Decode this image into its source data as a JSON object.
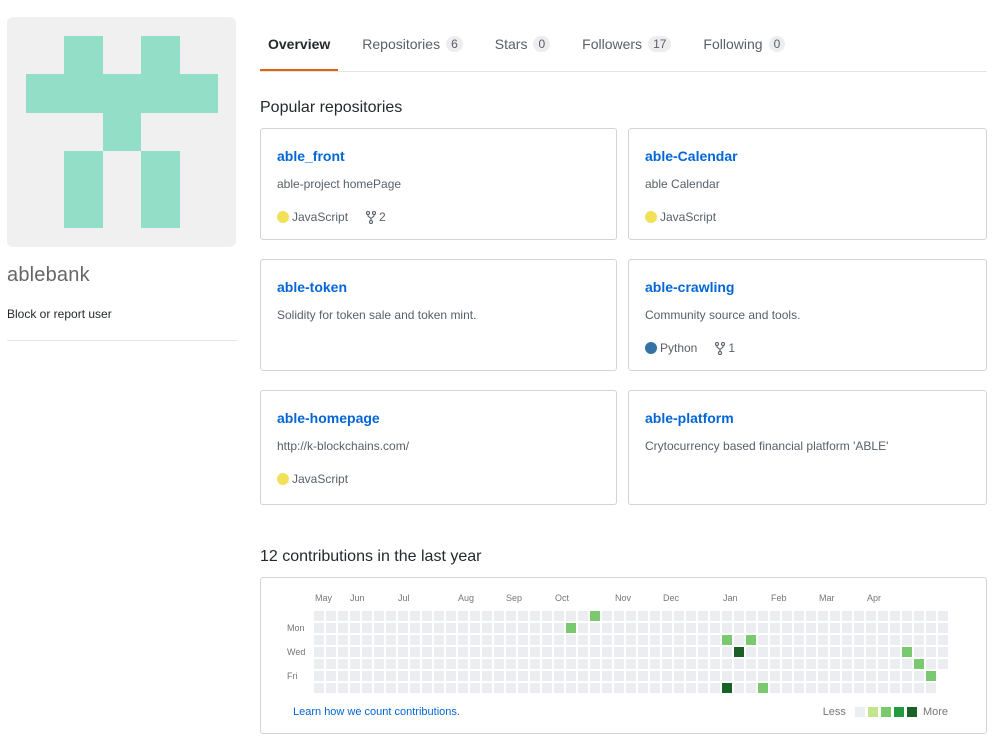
{
  "profile": {
    "username": "ablebank",
    "block_link": "Block or report user"
  },
  "tabs": [
    {
      "label": "Overview",
      "count": null,
      "selected": true
    },
    {
      "label": "Repositories",
      "count": "6",
      "selected": false
    },
    {
      "label": "Stars",
      "count": "0",
      "selected": false
    },
    {
      "label": "Followers",
      "count": "17",
      "selected": false
    },
    {
      "label": "Following",
      "count": "0",
      "selected": false
    }
  ],
  "popular": {
    "title": "Popular repositories",
    "repos": [
      {
        "name": "able_front",
        "description": "able-project homePage",
        "language": "JavaScript",
        "lang_color": "#f1e05a",
        "forks": "2"
      },
      {
        "name": "able-Calendar",
        "description": "able Calendar",
        "language": "JavaScript",
        "lang_color": "#f1e05a",
        "forks": ""
      },
      {
        "name": "able-token",
        "description": "Solidity for token sale and token mint.",
        "language": "",
        "lang_color": "",
        "forks": ""
      },
      {
        "name": "able-crawling",
        "description": "Community source and tools.",
        "language": "Python",
        "lang_color": "#3572A5",
        "forks": "1"
      },
      {
        "name": "able-homepage",
        "description": "http://k-blockchains.com/",
        "language": "JavaScript",
        "lang_color": "#f1e05a",
        "forks": ""
      },
      {
        "name": "able-platform",
        "description": "Crytocurrency based financial platform 'ABLE'",
        "language": "",
        "lang_color": "",
        "forks": ""
      }
    ]
  },
  "contributions": {
    "title": "12 contributions in the last year",
    "months": [
      "May",
      "Jun",
      "Jul",
      "Aug",
      "Sep",
      "Oct",
      "Nov",
      "Dec",
      "Jan",
      "Feb",
      "Mar",
      "Apr"
    ],
    "day_labels": [
      "Mon",
      "Wed",
      "Fri"
    ],
    "learn_link": "Learn how we count contributions.",
    "legend_less": "Less",
    "legend_more": "More",
    "colors": [
      "#ebedf0",
      "#c6e48b",
      "#7bc96f",
      "#239a3b",
      "#196127"
    ],
    "weeks": 53,
    "last_week_days": 5,
    "active_cells": [
      {
        "week": 21,
        "day": 1,
        "level": 2
      },
      {
        "week": 23,
        "day": 0,
        "level": 2
      },
      {
        "week": 34,
        "day": 2,
        "level": 2
      },
      {
        "week": 34,
        "day": 6,
        "level": 4
      },
      {
        "week": 35,
        "day": 3,
        "level": 4
      },
      {
        "week": 36,
        "day": 2,
        "level": 2
      },
      {
        "week": 37,
        "day": 6,
        "level": 2
      },
      {
        "week": 49,
        "day": 3,
        "level": 2
      },
      {
        "week": 50,
        "day": 4,
        "level": 2
      },
      {
        "week": 51,
        "day": 5,
        "level": 2
      }
    ]
  }
}
